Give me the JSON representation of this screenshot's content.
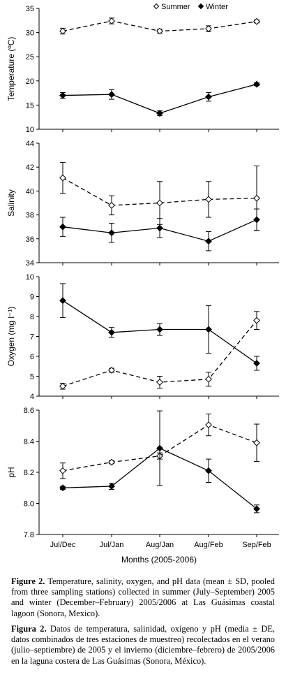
{
  "chart_data": [
    {
      "type": "line",
      "ylabel": "Temperature (ºC)",
      "ylim": [
        10,
        35
      ],
      "yticks": [
        "10",
        "15",
        "20",
        "25",
        "30",
        "35"
      ],
      "categories": [
        "Jul/Dec",
        "Jul/Jan",
        "Aug/Jan",
        "Aug/Feb",
        "Sep/Feb"
      ],
      "legend": "top-right",
      "series": [
        {
          "name": "Summer",
          "values": [
            30.3,
            32.4,
            30.3,
            30.8,
            32.3
          ],
          "sd": [
            0.6,
            0.6,
            0.4,
            0.6,
            0.3
          ]
        },
        {
          "name": "Winter",
          "values": [
            17.0,
            17.2,
            13.3,
            16.7,
            19.3
          ],
          "sd": [
            0.6,
            1.0,
            0.5,
            0.9,
            0.3
          ]
        }
      ]
    },
    {
      "type": "line",
      "ylabel": "Salinity",
      "ylim": [
        34,
        44
      ],
      "yticks": [
        "34",
        "36",
        "38",
        "40",
        "42",
        "44"
      ],
      "categories": [
        "Jul/Dec",
        "Jul/Jan",
        "Aug/Jan",
        "Aug/Feb",
        "Sep/Feb"
      ],
      "series": [
        {
          "name": "Summer",
          "values": [
            41.1,
            38.8,
            39.0,
            39.3,
            39.4
          ],
          "sd": [
            1.3,
            0.8,
            1.8,
            1.5,
            2.7
          ]
        },
        {
          "name": "Winter",
          "values": [
            37.0,
            36.5,
            36.9,
            35.8,
            37.6
          ],
          "sd": [
            0.8,
            0.8,
            0.8,
            0.8,
            0.9
          ]
        }
      ]
    },
    {
      "type": "line",
      "ylabel": "Oxygen (mg l⁻¹)",
      "ylim": [
        4,
        10
      ],
      "yticks": [
        "4",
        "5",
        "6",
        "7",
        "8",
        "9",
        "10"
      ],
      "categories": [
        "Jul/Dec",
        "Jul/Jan",
        "Aug/Jan",
        "Aug/Feb",
        "Sep/Feb"
      ],
      "series": [
        {
          "name": "Summer",
          "values": [
            4.5,
            5.3,
            4.7,
            4.85,
            7.8
          ],
          "sd": [
            0.15,
            0.1,
            0.3,
            0.35,
            0.45
          ]
        },
        {
          "name": "Winter",
          "values": [
            8.8,
            7.2,
            7.35,
            7.35,
            5.65
          ],
          "sd": [
            0.85,
            0.25,
            0.3,
            1.2,
            0.35
          ]
        }
      ]
    },
    {
      "type": "line",
      "ylabel": "pH",
      "ylim": [
        7.8,
        8.6
      ],
      "yticks": [
        "7.8",
        "8.0",
        "8.2",
        "8.4",
        "8.6"
      ],
      "xlabel": "Months (2005-2006)",
      "categories": [
        "Jul/Dec",
        "Jul/Jan",
        "Aug/Jan",
        "Aug/Feb",
        "Sep/Feb"
      ],
      "series": [
        {
          "name": "Summer",
          "values": [
            8.21,
            8.265,
            8.305,
            8.505,
            8.39
          ],
          "sd": [
            0.05,
            0.01,
            0.02,
            0.07,
            0.12
          ]
        },
        {
          "name": "Winter",
          "values": [
            8.1,
            8.11,
            8.355,
            8.21,
            7.965
          ],
          "sd": [
            0.01,
            0.02,
            0.24,
            0.075,
            0.025
          ]
        }
      ]
    }
  ],
  "caption_en": {
    "label": "Figure 2.",
    "text": "Temperature, salinity, oxygen, and pH data (mean ± SD, pooled from three sampling stations) collected in summer (July–September) 2005 and winter (December–February) 2005/2006 at Las Guásimas coastal lagoon (Sonora, Mexico)."
  },
  "caption_es": {
    "label": "Figura 2.",
    "text": "Datos de temperatura, salinidad, oxígeno y pH (media ± DE, datos combinados de tres estaciones de muestreo) recolectados en el verano (julio–septiembre) de 2005 y el invierno (diciembre–febrero) de 2005/2006 en la laguna costera de Las Guásimas (Sonora, México)."
  }
}
